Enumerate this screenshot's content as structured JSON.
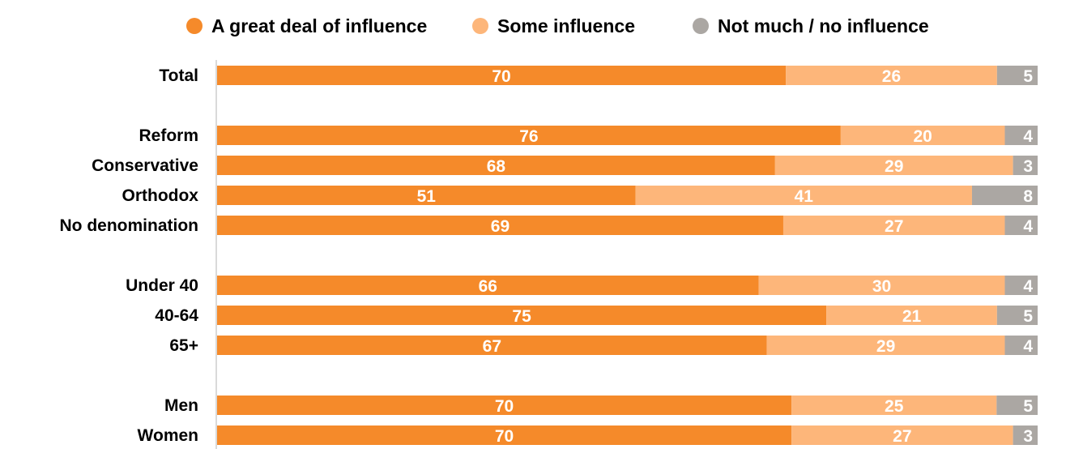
{
  "chart_data": {
    "type": "bar",
    "orientation": "horizontal",
    "stacked": true,
    "legend_position": "top",
    "grid": false,
    "xlim": [
      0,
      100
    ],
    "categories": [
      "Total",
      "Reform",
      "Conservative",
      "Orthodox",
      "No denomination",
      "Under 40",
      "40-64",
      "65+",
      "Men",
      "Women"
    ],
    "groups": [
      [
        "Total"
      ],
      [
        "Reform",
        "Conservative",
        "Orthodox",
        "No denomination"
      ],
      [
        "Under 40",
        "40-64",
        "65+"
      ],
      [
        "Men",
        "Women"
      ]
    ],
    "series": [
      {
        "name": "A great deal of influence",
        "color": "#f58a2a",
        "values": [
          70,
          76,
          68,
          51,
          69,
          66,
          75,
          67,
          70,
          70
        ]
      },
      {
        "name": "Some influence",
        "color": "#fdb67a",
        "values": [
          26,
          20,
          29,
          41,
          27,
          30,
          21,
          29,
          25,
          27
        ]
      },
      {
        "name": "Not much / no influence",
        "color": "#aba7a3",
        "values": [
          5,
          4,
          3,
          8,
          4,
          4,
          5,
          4,
          5,
          3
        ]
      }
    ]
  }
}
